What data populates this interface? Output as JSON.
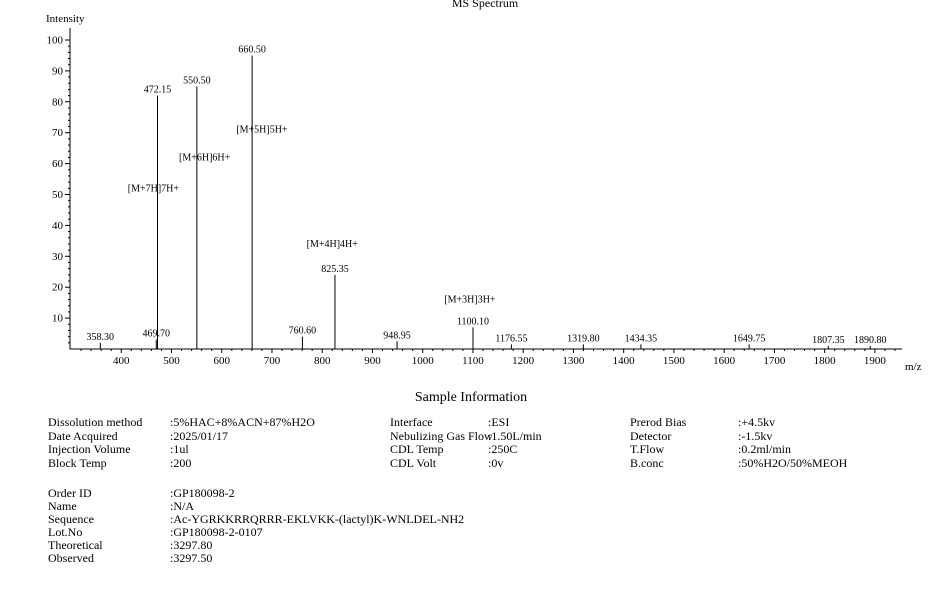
{
  "chart": {
    "chart_data": {
      "type": "bar",
      "subtype": "mass-spectrum-sticks",
      "title": "MS Spectrum",
      "xlabel": "m/z",
      "ylabel": "Intensity",
      "xlim": [
        300,
        1950
      ],
      "ylim": [
        0,
        100
      ],
      "grid": false,
      "x_ticks": [
        400,
        500,
        600,
        700,
        800,
        900,
        1000,
        1100,
        1200,
        1300,
        1400,
        1500,
        1600,
        1700,
        1800,
        1900
      ],
      "y_ticks": [
        10,
        20,
        30,
        40,
        50,
        60,
        70,
        80,
        90,
        100
      ],
      "peaks": [
        {
          "mz": 358.3,
          "intensity": 2,
          "label": "358.30"
        },
        {
          "mz": 469.7,
          "intensity": 3,
          "label": "469.70"
        },
        {
          "mz": 472.15,
          "intensity": 82,
          "label": "472.15"
        },
        {
          "mz": 550.5,
          "intensity": 85,
          "label": "550.50"
        },
        {
          "mz": 660.5,
          "intensity": 95,
          "label": "660.50"
        },
        {
          "mz": 760.6,
          "intensity": 4,
          "label": "760.60"
        },
        {
          "mz": 825.35,
          "intensity": 24,
          "label": "825.35"
        },
        {
          "mz": 948.95,
          "intensity": 2.5,
          "label": "948.95"
        },
        {
          "mz": 1100.1,
          "intensity": 7,
          "label": "1100.10"
        },
        {
          "mz": 1176.55,
          "intensity": 1.5,
          "label": "1176.55"
        },
        {
          "mz": 1319.8,
          "intensity": 1.5,
          "label": "1319.80"
        },
        {
          "mz": 1434.35,
          "intensity": 1.5,
          "label": "1434.35"
        },
        {
          "mz": 1649.75,
          "intensity": 1.5,
          "label": "1649.75"
        },
        {
          "mz": 1807.35,
          "intensity": 1,
          "label": "1807.35"
        },
        {
          "mz": 1890.8,
          "intensity": 1,
          "label": "1890.80"
        }
      ],
      "annotations": [
        {
          "text": "[M+7H]7H+",
          "mz": 464,
          "intensity": 51
        },
        {
          "text": "[M+6H]6H+",
          "mz": 566,
          "intensity": 61
        },
        {
          "text": "[M+5H]5H+",
          "mz": 680,
          "intensity": 70
        },
        {
          "text": "[M+4H]4H+",
          "mz": 820,
          "intensity": 33
        },
        {
          "text": "[M+3H]3H+",
          "mz": 1094,
          "intensity": 15
        }
      ]
    }
  },
  "sample_info": {
    "heading": "Sample Information",
    "columns": [
      {
        "rows": [
          {
            "label": "Dissolution method",
            "value": ":5%HAC+8%ACN+87%H2O"
          },
          {
            "label": "Date Acquired",
            "value": ":2025/01/17"
          },
          {
            "label": "Injection Volume",
            "value": ":1ul"
          },
          {
            "label": "Block Temp",
            "value": ":200"
          }
        ]
      },
      {
        "rows": [
          {
            "label": "Interface",
            "value": ":ESI"
          },
          {
            "label": "Nebulizing Gas Flow",
            "value": ":1.50L/min"
          },
          {
            "label": "CDL Temp",
            "value": ":250C"
          },
          {
            "label": "CDL Volt",
            "value": ":0v"
          }
        ]
      },
      {
        "rows": [
          {
            "label": "Prerod Bias",
            "value": ":+4.5kv"
          },
          {
            "label": "Detector",
            "value": ":-1.5kv"
          },
          {
            "label": "T.Flow",
            "value": ":0.2ml/min"
          },
          {
            "label": "B.conc",
            "value": ":50%H2O/50%MEOH"
          }
        ]
      }
    ]
  },
  "product_info": {
    "rows": [
      {
        "label": "Order ID",
        "value": ":GP180098-2"
      },
      {
        "label": "Name",
        "value": ":N/A"
      },
      {
        "label": "Sequence",
        "value": ":Ac-YGRKKRRQRRR-EKLVKK-(lactyl)K-WNLDEL-NH2"
      },
      {
        "label": "Lot.No",
        "value": ":GP180098-2-0107"
      },
      {
        "label": "Theoretical",
        "value": ":3297.80"
      },
      {
        "label": "Observed",
        "value": ":3297.50"
      }
    ]
  }
}
